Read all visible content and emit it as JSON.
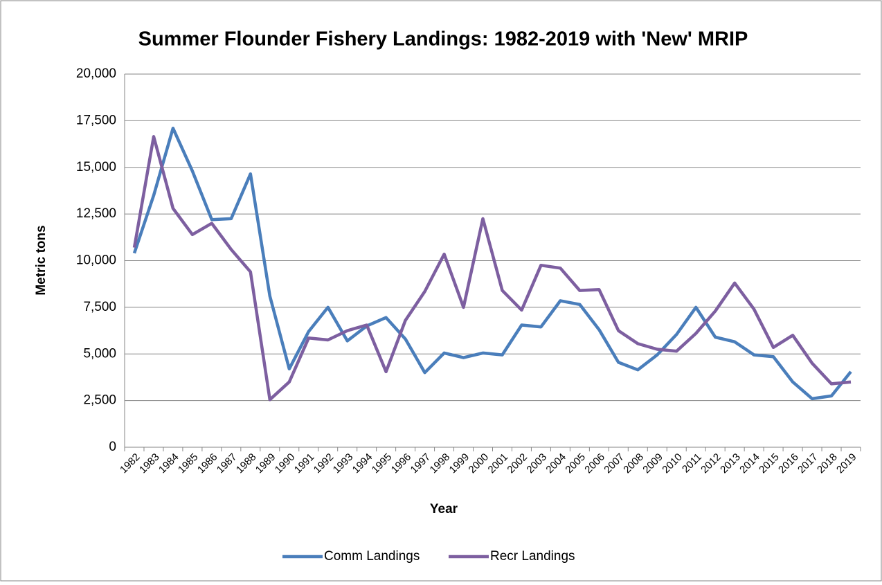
{
  "chart_data": {
    "type": "line",
    "title": "Summer Flounder Fishery Landings: 1982-2019 with 'New' MRIP",
    "x_label": "Year",
    "y_label": "Metric tons",
    "categories": [
      "1982",
      "1983",
      "1984",
      "1985",
      "1986",
      "1987",
      "1988",
      "1989",
      "1990",
      "1991",
      "1992",
      "1993",
      "1994",
      "1995",
      "1996",
      "1997",
      "1998",
      "1999",
      "2000",
      "2001",
      "2002",
      "2003",
      "2004",
      "2005",
      "2006",
      "2007",
      "2008",
      "2009",
      "2010",
      "2011",
      "2012",
      "2013",
      "2014",
      "2015",
      "2016",
      "2017",
      "2018",
      "2019"
    ],
    "series": [
      {
        "name": "Comm Landings",
        "color": "#4a7ebb",
        "values": [
          10400,
          13500,
          17100,
          14800,
          12200,
          12250,
          14650,
          8100,
          4200,
          6200,
          7500,
          5700,
          6500,
          6950,
          5800,
          4000,
          5050,
          4800,
          5050,
          4950,
          6550,
          6450,
          7850,
          7650,
          6300,
          4550,
          4150,
          4950,
          6050,
          7500,
          5900,
          5650,
          4950,
          4850,
          3500,
          2600,
          2750,
          4050
        ]
      },
      {
        "name": "Recr Landings",
        "color": "#7d5fa0",
        "values": [
          10700,
          16650,
          12800,
          11400,
          12000,
          10600,
          9400,
          2550,
          3500,
          5850,
          5750,
          6250,
          6550,
          4050,
          6800,
          8350,
          10350,
          7500,
          12250,
          8400,
          7350,
          9750,
          9600,
          8400,
          8450,
          6250,
          5550,
          5250,
          5150,
          6100,
          7300,
          8800,
          7400,
          5350,
          6000,
          4500,
          3400,
          3500
        ]
      }
    ],
    "ylim": [
      0,
      20000
    ],
    "yticks": [
      0,
      {
        "value": 2500,
        "label": "2,500"
      },
      {
        "value": 5000,
        "label": "5,000"
      },
      {
        "value": 7500,
        "label": "7,500"
      },
      {
        "value": 10000,
        "label": "10,000"
      },
      {
        "value": 12500,
        "label": "12,500"
      },
      {
        "value": 15000,
        "label": "15,000"
      },
      {
        "value": 17500,
        "label": "17,500"
      },
      {
        "value": 20000,
        "label": "20,000"
      }
    ],
    "grid": true,
    "legend": "bottom"
  }
}
